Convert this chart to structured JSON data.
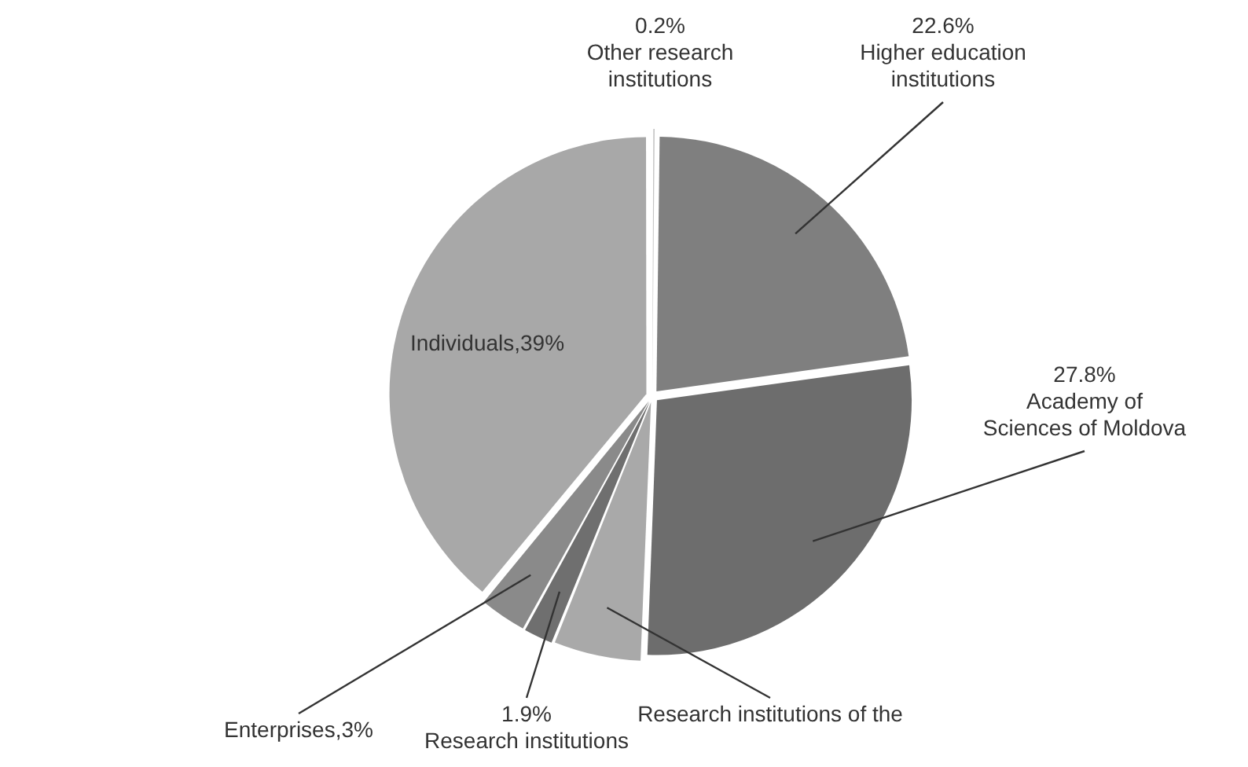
{
  "chart_data": {
    "type": "pie",
    "categories": [
      "Other research institutions",
      "Higher education institutions",
      "Academy of Sciences of Moldova",
      "Research institutions of the",
      "Research institutions",
      "Enterprises,3%",
      "Individuals,39%"
    ],
    "values": [
      0.2,
      22.6,
      27.8,
      5.5,
      1.9,
      3,
      39
    ],
    "colors": [
      "#c4c4c4",
      "#7f7f7f",
      "#6d6d6d",
      "#a9a9a9",
      "#6f6f6f",
      "#8a8a8a",
      "#a8a8a8"
    ],
    "value_labels": [
      "0.2%",
      "22.6%",
      "27.8%",
      null,
      "1.9%",
      null,
      null
    ],
    "legend": false
  }
}
